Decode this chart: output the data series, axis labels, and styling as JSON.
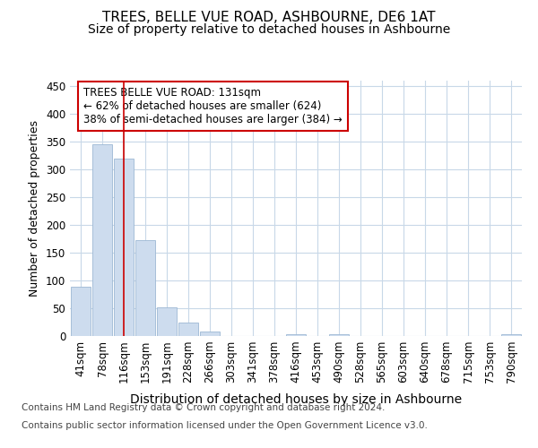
{
  "title": "TREES, BELLE VUE ROAD, ASHBOURNE, DE6 1AT",
  "subtitle": "Size of property relative to detached houses in Ashbourne",
  "xlabel": "Distribution of detached houses by size in Ashbourne",
  "ylabel": "Number of detached properties",
  "categories": [
    "41sqm",
    "78sqm",
    "116sqm",
    "153sqm",
    "191sqm",
    "228sqm",
    "266sqm",
    "303sqm",
    "341sqm",
    "378sqm",
    "416sqm",
    "453sqm",
    "490sqm",
    "528sqm",
    "565sqm",
    "603sqm",
    "640sqm",
    "678sqm",
    "715sqm",
    "753sqm",
    "790sqm"
  ],
  "values": [
    88,
    345,
    320,
    172,
    52,
    25,
    8,
    0,
    0,
    0,
    4,
    0,
    4,
    0,
    0,
    0,
    0,
    0,
    0,
    0,
    4
  ],
  "bar_color": "#cddcee",
  "bar_edge_color": "#9db8d4",
  "vline_x": 2,
  "vline_color": "#cc0000",
  "annotation_line1": "TREES BELLE VUE ROAD: 131sqm",
  "annotation_line2": "← 62% of detached houses are smaller (624)",
  "annotation_line3": "38% of semi-detached houses are larger (384) →",
  "annotation_box_facecolor": "#ffffff",
  "annotation_box_edgecolor": "#cc0000",
  "ylim": [
    0,
    460
  ],
  "yticks": [
    0,
    50,
    100,
    150,
    200,
    250,
    300,
    350,
    400,
    450
  ],
  "bg_color": "#ffffff",
  "plot_bg_color": "#ffffff",
  "grid_color": "#c8d8e8",
  "footer1": "Contains HM Land Registry data © Crown copyright and database right 2024.",
  "footer2": "Contains public sector information licensed under the Open Government Licence v3.0.",
  "title_fontsize": 11,
  "subtitle_fontsize": 10,
  "xlabel_fontsize": 10,
  "ylabel_fontsize": 9,
  "tick_fontsize": 8.5,
  "annotation_fontsize": 8.5,
  "footer_fontsize": 7.5
}
